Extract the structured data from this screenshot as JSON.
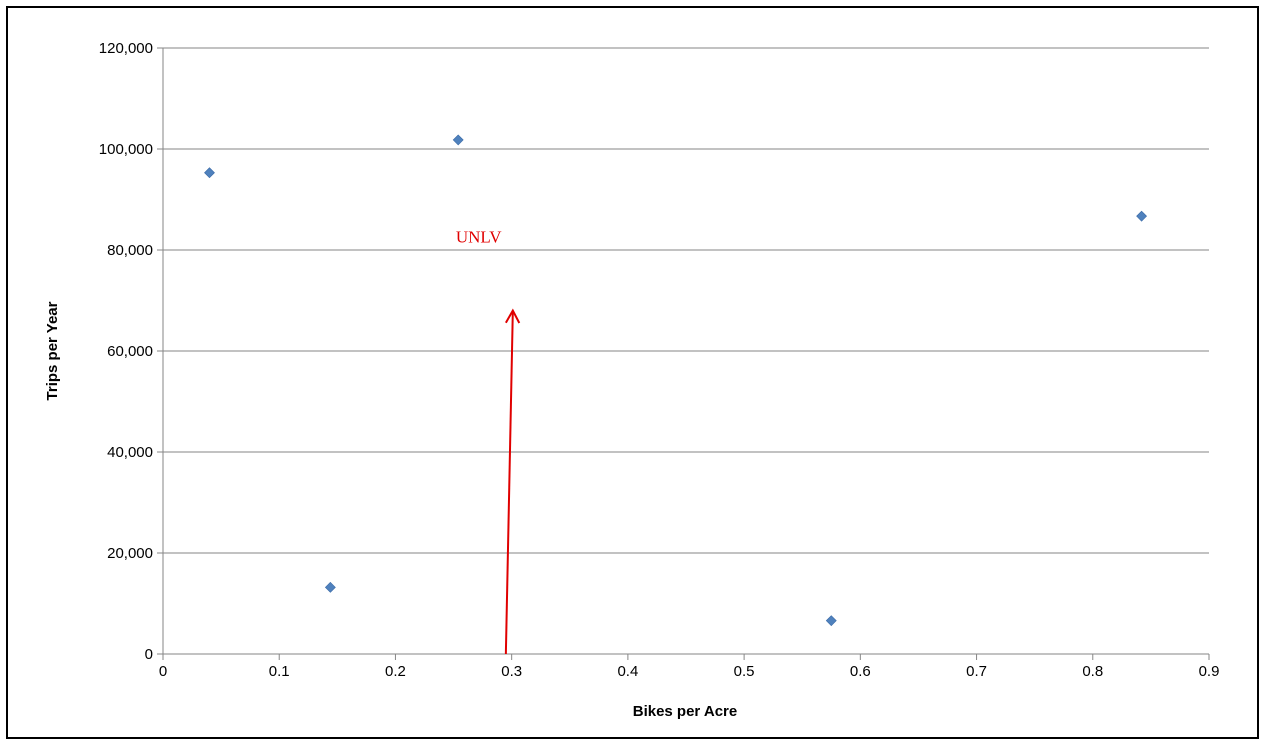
{
  "chart_data": {
    "type": "scatter",
    "title": "",
    "xlabel": "Bikes per Acre",
    "ylabel": "Trips per Year",
    "xlim": [
      0,
      0.9
    ],
    "ylim": [
      0,
      120000
    ],
    "xticks": [
      0,
      0.1,
      0.2,
      0.3,
      0.4,
      0.5,
      0.6,
      0.7,
      0.8,
      0.9
    ],
    "xtick_labels": [
      "0",
      "0.1",
      "0.2",
      "0.3",
      "0.4",
      "0.5",
      "0.6",
      "0.7",
      "0.8",
      "0.9"
    ],
    "yticks": [
      0,
      20000,
      40000,
      60000,
      80000,
      100000,
      120000
    ],
    "ytick_labels": [
      "0",
      "20,000",
      "40,000",
      "60,000",
      "80,000",
      "100,000",
      "120,000"
    ],
    "grid": "horizontal",
    "legend": "none",
    "series": [
      {
        "marker": "diamond",
        "color": "#4f81bd",
        "points": [
          {
            "x": 0.04,
            "y": 95300
          },
          {
            "x": 0.144,
            "y": 13200
          },
          {
            "x": 0.254,
            "y": 101800
          },
          {
            "x": 0.575,
            "y": 6600
          },
          {
            "x": 0.842,
            "y": 86700
          }
        ]
      }
    ],
    "annotations": [
      {
        "text": "UNLV",
        "color": "#e00000",
        "at": {
          "x": 0.252,
          "y": 81500
        },
        "arrow": {
          "from": {
            "x": 0.295,
            "y": 0
          },
          "to": {
            "x": 0.301,
            "y": 68000
          }
        }
      }
    ]
  }
}
